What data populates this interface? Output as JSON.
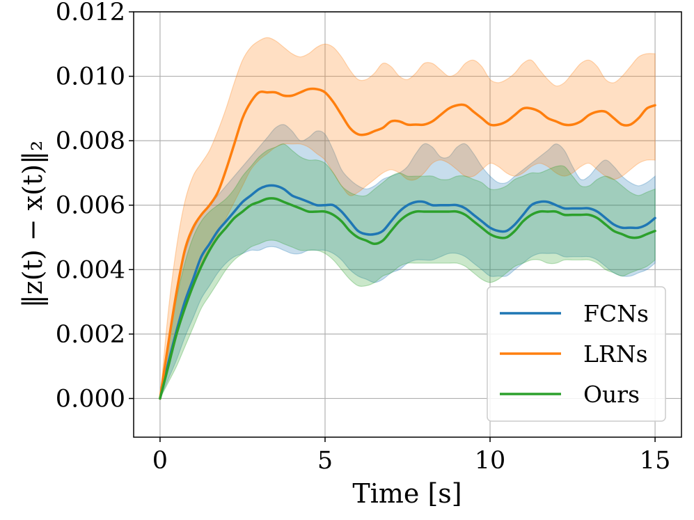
{
  "chart_data": {
    "type": "line",
    "xlabel": "Time [s]",
    "ylabel": "‖z(t) − x(t)‖₂",
    "xlim": [
      -0.8,
      15.8
    ],
    "ylim": [
      -0.0012,
      0.012
    ],
    "xticks": [
      0,
      5,
      10,
      15
    ],
    "xtick_labels": [
      "0",
      "5",
      "10",
      "15"
    ],
    "yticks": [
      0.0,
      0.002,
      0.004,
      0.006,
      0.008,
      0.01,
      0.012
    ],
    "ytick_labels": [
      "0.000",
      "0.002",
      "0.004",
      "0.006",
      "0.008",
      "0.010",
      "0.012"
    ],
    "grid": true,
    "legend_position": "lower-right",
    "x": [
      0,
      0.25,
      0.5,
      0.75,
      1,
      1.25,
      1.5,
      1.75,
      2,
      2.25,
      2.5,
      2.75,
      3,
      3.25,
      3.5,
      3.75,
      4,
      4.25,
      4.5,
      4.75,
      5,
      5.25,
      5.5,
      5.75,
      6,
      6.25,
      6.5,
      6.75,
      7,
      7.25,
      7.5,
      7.75,
      8,
      8.25,
      8.5,
      8.75,
      9,
      9.25,
      9.5,
      9.75,
      10,
      10.25,
      10.5,
      10.75,
      11,
      11.25,
      11.5,
      11.75,
      12,
      12.25,
      12.5,
      12.75,
      13,
      13.25,
      13.5,
      13.75,
      14,
      14.25,
      14.5,
      14.75,
      15
    ],
    "series": [
      {
        "name": "FCNs",
        "color": "#1f77b4",
        "values": [
          0,
          0.0011,
          0.0021,
          0.003,
          0.0037,
          0.0044,
          0.0048,
          0.0052,
          0.0055,
          0.0058,
          0.0061,
          0.0063,
          0.0065,
          0.0066,
          0.0066,
          0.0065,
          0.0063,
          0.0062,
          0.0061,
          0.006,
          0.006,
          0.006,
          0.0058,
          0.0055,
          0.0052,
          0.0051,
          0.0051,
          0.0052,
          0.0055,
          0.0058,
          0.006,
          0.0061,
          0.0061,
          0.006,
          0.006,
          0.006,
          0.006,
          0.0059,
          0.0057,
          0.0055,
          0.0053,
          0.0052,
          0.0052,
          0.0054,
          0.0057,
          0.006,
          0.0061,
          0.0061,
          0.006,
          0.0059,
          0.0059,
          0.0059,
          0.0059,
          0.0058,
          0.0056,
          0.0054,
          0.0053,
          0.0053,
          0.0053,
          0.0054,
          0.0056
        ],
        "upper": [
          0,
          0.0017,
          0.0034,
          0.0045,
          0.0052,
          0.0057,
          0.006,
          0.0063,
          0.0066,
          0.0069,
          0.0072,
          0.0075,
          0.0078,
          0.0081,
          0.0084,
          0.0085,
          0.0083,
          0.008,
          0.0081,
          0.0083,
          0.0082,
          0.0077,
          0.0071,
          0.0068,
          0.0066,
          0.0065,
          0.0066,
          0.0068,
          0.0069,
          0.007,
          0.0072,
          0.0076,
          0.0079,
          0.0078,
          0.0075,
          0.0075,
          0.0078,
          0.0079,
          0.0076,
          0.0072,
          0.0069,
          0.0067,
          0.0067,
          0.0069,
          0.0071,
          0.0073,
          0.0075,
          0.0077,
          0.0079,
          0.0077,
          0.0072,
          0.0068,
          0.0069,
          0.0072,
          0.0074,
          0.0072,
          0.0069,
          0.0067,
          0.0066,
          0.0067,
          0.0069
        ],
        "lower": [
          0,
          0.0006,
          0.0012,
          0.0019,
          0.0025,
          0.0031,
          0.0035,
          0.0039,
          0.0042,
          0.0044,
          0.0045,
          0.0046,
          0.0046,
          0.0047,
          0.0047,
          0.0046,
          0.0045,
          0.0045,
          0.0046,
          0.0046,
          0.0046,
          0.0045,
          0.0043,
          0.004,
          0.0038,
          0.0037,
          0.0036,
          0.0037,
          0.0039,
          0.004,
          0.0042,
          0.0043,
          0.0043,
          0.0043,
          0.0044,
          0.0045,
          0.0045,
          0.0044,
          0.0042,
          0.004,
          0.0038,
          0.0038,
          0.0038,
          0.004,
          0.0042,
          0.0044,
          0.0045,
          0.0045,
          0.0045,
          0.0044,
          0.0044,
          0.0044,
          0.0044,
          0.0043,
          0.0041,
          0.0039,
          0.0038,
          0.0038,
          0.0039,
          0.004,
          0.0042
        ]
      },
      {
        "name": "LRNs",
        "color": "#ff7f0e",
        "values": [
          0,
          0.0017,
          0.0033,
          0.0046,
          0.0053,
          0.0057,
          0.006,
          0.0064,
          0.0071,
          0.0079,
          0.0087,
          0.0092,
          0.0095,
          0.0095,
          0.0095,
          0.0094,
          0.0094,
          0.0095,
          0.0096,
          0.0096,
          0.0095,
          0.0092,
          0.0088,
          0.0084,
          0.0082,
          0.0082,
          0.0083,
          0.0084,
          0.0086,
          0.0086,
          0.0085,
          0.0085,
          0.0085,
          0.0086,
          0.0088,
          0.009,
          0.0091,
          0.0091,
          0.0089,
          0.0087,
          0.0085,
          0.0085,
          0.0086,
          0.0088,
          0.009,
          0.009,
          0.0089,
          0.0087,
          0.0086,
          0.0085,
          0.0085,
          0.0086,
          0.0088,
          0.0089,
          0.0089,
          0.0087,
          0.0085,
          0.0085,
          0.0087,
          0.009,
          0.0091
        ],
        "upper": [
          0,
          0.0027,
          0.0047,
          0.0061,
          0.0069,
          0.0073,
          0.0077,
          0.0083,
          0.009,
          0.0098,
          0.0105,
          0.0109,
          0.0111,
          0.0112,
          0.0111,
          0.0109,
          0.0107,
          0.0106,
          0.0107,
          0.0109,
          0.011,
          0.0109,
          0.0106,
          0.0102,
          0.0099,
          0.0099,
          0.0101,
          0.0104,
          0.0103,
          0.01,
          0.0099,
          0.0101,
          0.0104,
          0.0104,
          0.0102,
          0.01,
          0.0101,
          0.0104,
          0.0105,
          0.0103,
          0.0099,
          0.0098,
          0.0099,
          0.0101,
          0.0104,
          0.0105,
          0.0102,
          0.0099,
          0.0097,
          0.0098,
          0.0101,
          0.0104,
          0.0105,
          0.0103,
          0.0099,
          0.0098,
          0.01,
          0.0103,
          0.0106,
          0.0107,
          0.0107
        ],
        "lower": [
          0,
          0.0009,
          0.0019,
          0.0028,
          0.0036,
          0.0042,
          0.0047,
          0.0051,
          0.0056,
          0.0061,
          0.0066,
          0.0071,
          0.0074,
          0.0076,
          0.0078,
          0.0079,
          0.0079,
          0.0079,
          0.0078,
          0.0076,
          0.0074,
          0.007,
          0.0066,
          0.0063,
          0.0064,
          0.0066,
          0.0068,
          0.007,
          0.0071,
          0.007,
          0.0068,
          0.0068,
          0.007,
          0.0073,
          0.0074,
          0.0073,
          0.0071,
          0.0069,
          0.0069,
          0.0071,
          0.0073,
          0.0072,
          0.007,
          0.0069,
          0.007,
          0.0072,
          0.0073,
          0.0072,
          0.007,
          0.0069,
          0.007,
          0.0072,
          0.0073,
          0.0071,
          0.0069,
          0.0068,
          0.0069,
          0.0071,
          0.0073,
          0.0074,
          0.0074
        ]
      },
      {
        "name": "Ours",
        "color": "#2ca02c",
        "values": [
          0,
          0.001,
          0.002,
          0.0028,
          0.0035,
          0.0041,
          0.0046,
          0.005,
          0.0053,
          0.0056,
          0.0058,
          0.006,
          0.0061,
          0.0062,
          0.0062,
          0.0061,
          0.006,
          0.0059,
          0.0058,
          0.0058,
          0.0058,
          0.0057,
          0.0055,
          0.0052,
          0.005,
          0.0049,
          0.0048,
          0.0049,
          0.0052,
          0.0055,
          0.0057,
          0.0058,
          0.0058,
          0.0058,
          0.0058,
          0.0058,
          0.0058,
          0.0057,
          0.0055,
          0.0053,
          0.0051,
          0.005,
          0.005,
          0.0052,
          0.0055,
          0.0057,
          0.0058,
          0.0058,
          0.0058,
          0.0057,
          0.0057,
          0.0057,
          0.0057,
          0.0056,
          0.0054,
          0.0052,
          0.0051,
          0.005,
          0.005,
          0.0051,
          0.0052
        ],
        "upper": [
          0,
          0.0016,
          0.0031,
          0.0042,
          0.005,
          0.0055,
          0.0058,
          0.006,
          0.0062,
          0.0065,
          0.0069,
          0.0072,
          0.0075,
          0.0077,
          0.0078,
          0.0079,
          0.0077,
          0.0075,
          0.0074,
          0.0074,
          0.0073,
          0.007,
          0.0066,
          0.0064,
          0.0063,
          0.0063,
          0.0065,
          0.0067,
          0.0069,
          0.007,
          0.0069,
          0.0069,
          0.0069,
          0.0069,
          0.0068,
          0.0068,
          0.0069,
          0.0069,
          0.0068,
          0.0067,
          0.0065,
          0.0065,
          0.0066,
          0.0068,
          0.0069,
          0.007,
          0.007,
          0.0071,
          0.0072,
          0.0072,
          0.0069,
          0.0066,
          0.0066,
          0.0068,
          0.0069,
          0.0068,
          0.0066,
          0.0064,
          0.0063,
          0.0064,
          0.0065
        ],
        "lower": [
          0,
          0.0005,
          0.001,
          0.0016,
          0.0022,
          0.0028,
          0.0032,
          0.0036,
          0.004,
          0.0043,
          0.0045,
          0.0047,
          0.0048,
          0.0049,
          0.0049,
          0.0048,
          0.0047,
          0.0046,
          0.0046,
          0.0046,
          0.0045,
          0.0043,
          0.004,
          0.0037,
          0.0035,
          0.0035,
          0.0036,
          0.0038,
          0.0039,
          0.0041,
          0.0042,
          0.0042,
          0.0042,
          0.0042,
          0.0042,
          0.0042,
          0.0042,
          0.0041,
          0.0039,
          0.0037,
          0.0036,
          0.0037,
          0.0039,
          0.0041,
          0.0042,
          0.0043,
          0.0043,
          0.0042,
          0.0042,
          0.0043,
          0.0043,
          0.0043,
          0.0043,
          0.0042,
          0.004,
          0.0039,
          0.0038,
          0.0039,
          0.004,
          0.0041,
          0.0043
        ]
      }
    ]
  }
}
